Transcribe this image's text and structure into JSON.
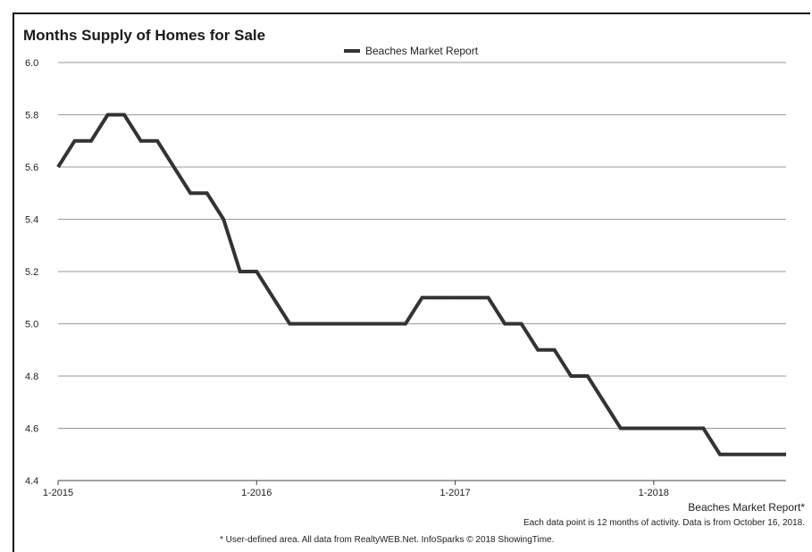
{
  "chart_data": {
    "type": "line",
    "title": "Months Supply of Homes for Sale",
    "xlabel": "",
    "ylabel": "",
    "x_tick_labels": [
      "1-2015",
      "1-2016",
      "1-2017",
      "1-2018"
    ],
    "y_ticks": [
      "4.4",
      "4.6",
      "4.8",
      "5.0",
      "5.2",
      "5.4",
      "5.6",
      "5.8",
      "6.0"
    ],
    "ylim": [
      4.4,
      6.0
    ],
    "grid": true,
    "legend_position": "top-center",
    "series": [
      {
        "name": "Beaches Market Report",
        "color": "#333333",
        "x": [
          "2015-01",
          "2015-02",
          "2015-03",
          "2015-04",
          "2015-05",
          "2015-06",
          "2015-07",
          "2015-08",
          "2015-09",
          "2015-10",
          "2015-11",
          "2015-12",
          "2016-01",
          "2016-02",
          "2016-03",
          "2016-04",
          "2016-05",
          "2016-06",
          "2016-07",
          "2016-08",
          "2016-09",
          "2016-10",
          "2016-11",
          "2016-12",
          "2017-01",
          "2017-02",
          "2017-03",
          "2017-04",
          "2017-05",
          "2017-06",
          "2017-07",
          "2017-08",
          "2017-09",
          "2017-10",
          "2017-11",
          "2017-12",
          "2018-01",
          "2018-02",
          "2018-03",
          "2018-04",
          "2018-05",
          "2018-06",
          "2018-07",
          "2018-08",
          "2018-09"
        ],
        "values": [
          5.6,
          5.7,
          5.7,
          5.8,
          5.8,
          5.7,
          5.7,
          5.6,
          5.5,
          5.5,
          5.4,
          5.2,
          5.2,
          5.1,
          5.0,
          5.0,
          5.0,
          5.0,
          5.0,
          5.0,
          5.0,
          5.0,
          5.1,
          5.1,
          5.1,
          5.1,
          5.1,
          5.0,
          5.0,
          4.9,
          4.9,
          4.8,
          4.8,
          4.7,
          4.6,
          4.6,
          4.6,
          4.6,
          4.6,
          4.6,
          4.5,
          4.5,
          4.5,
          4.5,
          4.5
        ]
      }
    ]
  },
  "footer": {
    "series_label": "Beaches Market Report*",
    "note": "Each data point is 12 months of activity. Data is from October 16, 2018.",
    "credit": "* User-defined area. All data from RealtyWEB.Net. InfoSparks © 2018 ShowingTime."
  }
}
